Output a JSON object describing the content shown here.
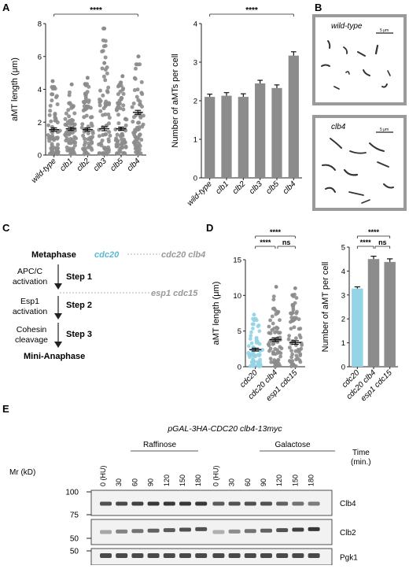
{
  "panels": {
    "A": "A",
    "B": "B",
    "C": "C",
    "D": "D",
    "E": "E"
  },
  "colors": {
    "gray": "#8c8c8c",
    "cyan": "#93d4e6",
    "cyan_text": "#5ab8d2",
    "frame": "#9a9a9a"
  },
  "chart_data": [
    {
      "type": "scatter",
      "panel": "A-left",
      "ylabel": "aMT length (μm)",
      "ylim": [
        0,
        8
      ],
      "yticks": [
        "0",
        "2",
        "4",
        "6",
        "8"
      ],
      "categories": [
        "wild-type",
        "clb1",
        "clb2",
        "clb3",
        "clb5",
        "clb4"
      ],
      "means": [
        1.55,
        1.6,
        1.55,
        1.6,
        1.6,
        2.6
      ],
      "sem": [
        0.1,
        0.1,
        0.1,
        0.12,
        0.1,
        0.12
      ],
      "max_points": [
        4.5,
        4.3,
        4.7,
        7.7,
        4.8,
        6.0
      ],
      "outliers": [
        {
          "category": "clb3",
          "value": 5.6
        },
        {
          "category": "clb3",
          "value": 7.7
        }
      ],
      "significance": {
        "from": "wild-type",
        "to": "clb4",
        "label": "****"
      }
    },
    {
      "type": "bar",
      "panel": "A-right",
      "ylabel": "Number of aMTs per cell",
      "ylim": [
        0,
        4
      ],
      "yticks": [
        "0",
        "1",
        "2",
        "3",
        "4"
      ],
      "categories": [
        "wild-type",
        "clb1",
        "clb2",
        "clb3",
        "clb5",
        "clb4"
      ],
      "values": [
        2.1,
        2.13,
        2.1,
        2.45,
        2.33,
        3.17
      ],
      "sem": [
        0.07,
        0.08,
        0.08,
        0.08,
        0.08,
        0.1
      ],
      "significance": {
        "from": "wild-type",
        "to": "clb4",
        "label": "****"
      }
    },
    {
      "type": "scatter",
      "panel": "D-left",
      "ylabel": "aMT length (μm)",
      "ylim": [
        0,
        15
      ],
      "yticks": [
        "0",
        "5",
        "10",
        "15"
      ],
      "categories": [
        "cdc20",
        "cdc20 clb4",
        "esp1 cdc15"
      ],
      "means": [
        2.4,
        3.8,
        3.4
      ],
      "sem": [
        0.2,
        0.25,
        0.25
      ],
      "max_points": [
        7.3,
        11.2,
        11.0
      ],
      "significance": [
        {
          "from": "cdc20",
          "to": "esp1 cdc15",
          "label": "****"
        },
        {
          "from": "cdc20",
          "to": "cdc20 clb4",
          "label": "****"
        },
        {
          "from": "cdc20 clb4",
          "to": "esp1 cdc15",
          "label": "ns"
        }
      ]
    },
    {
      "type": "bar",
      "panel": "D-right",
      "ylabel": "Number of aMT per cell",
      "ylim": [
        0,
        5
      ],
      "yticks": [
        "0",
        "1",
        "2",
        "3",
        "4",
        "5"
      ],
      "categories": [
        "cdc20",
        "cdc20 clb4",
        "esp1 cdc15"
      ],
      "values": [
        3.27,
        4.5,
        4.38
      ],
      "sem": [
        0.07,
        0.12,
        0.13
      ],
      "significance": [
        {
          "from": "cdc20",
          "to": "esp1 cdc15",
          "label": "****"
        },
        {
          "from": "cdc20",
          "to": "cdc20 clb4",
          "label": "****"
        },
        {
          "from": "cdc20 clb4",
          "to": "esp1 cdc15",
          "label": "ns"
        }
      ]
    }
  ],
  "micrographs": {
    "wildtype": {
      "label": "wild-type",
      "scale": "5 μm"
    },
    "clb4": {
      "label": "clb4",
      "scale": "5 μm"
    }
  },
  "pathway": {
    "metaphase": "Metaphase",
    "cdc20": "cdc20",
    "cdc20_clb4": "cdc20 clb4",
    "apc_line1": "APC/C",
    "apc_line2": "activation",
    "step1": "Step 1",
    "esp1_line1": "Esp1",
    "esp1_line2": "activation",
    "step2": "Step 2",
    "esp1_cdc15": "esp1 cdc15",
    "cohesin_line1": "Cohesin",
    "cohesin_line2": "cleavage",
    "step3": "Step 3",
    "mini_anaphase": "Mini-Anaphase"
  },
  "blot": {
    "title": "pGAL-3HA-CDC20 clb4-13myc",
    "mr_label": "Mr (kD)",
    "raffinose": "Raffinose",
    "galactose": "Galactose",
    "time_label": "Time",
    "time_unit": "(min.)",
    "lanes": [
      "0 (HU)",
      "30",
      "60",
      "90",
      "120",
      "150",
      "180",
      "0 (HU)",
      "30",
      "60",
      "90",
      "120",
      "150",
      "180"
    ],
    "markers": [
      {
        "label": "100"
      },
      {
        "label": "75"
      },
      {
        "label": "50"
      },
      {
        "label": "50"
      }
    ],
    "proteins": [
      "Clb4",
      "Clb2",
      "Pgk1"
    ],
    "intensity_clb4": [
      0.7,
      0.75,
      0.8,
      0.85,
      0.85,
      0.85,
      0.85,
      0.65,
      0.7,
      0.7,
      0.7,
      0.6,
      0.5,
      0.45
    ],
    "intensity_clb2": [
      0.2,
      0.4,
      0.5,
      0.6,
      0.65,
      0.7,
      0.7,
      0.15,
      0.35,
      0.5,
      0.6,
      0.7,
      0.8,
      0.85
    ],
    "intensity_pgk1": [
      0.75,
      0.75,
      0.75,
      0.75,
      0.75,
      0.75,
      0.75,
      0.75,
      0.75,
      0.75,
      0.75,
      0.75,
      0.75,
      0.75
    ]
  }
}
